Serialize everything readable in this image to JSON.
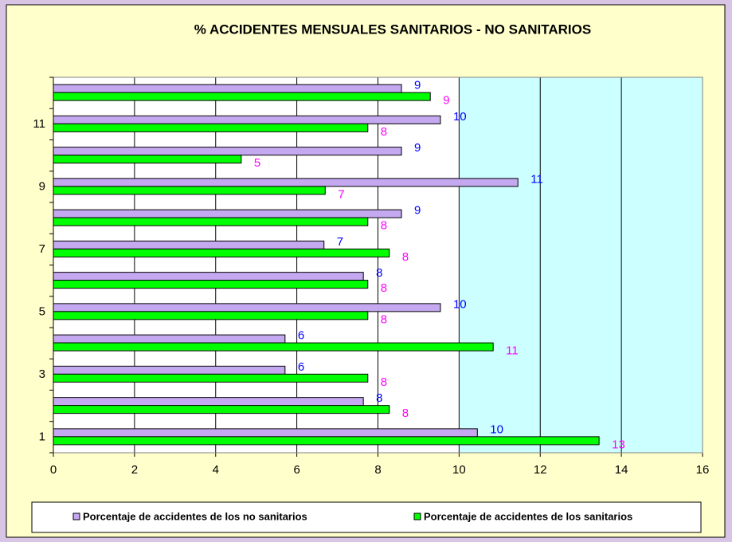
{
  "chart_data": {
    "type": "bar",
    "orientation": "horizontal",
    "title": "% ACCIDENTES MENSUALES SANITARIOS - NO SANITARIOS",
    "categories": [
      "1",
      null,
      "3",
      null,
      "5",
      null,
      "7",
      null,
      "9",
      null,
      "11",
      null
    ],
    "series": [
      {
        "name": "Porcentaje de accidentes de los no sanitarios",
        "color": "#c4a8f0",
        "label_color": "#0000ff",
        "values": [
          10.45,
          7.64,
          5.71,
          5.71,
          9.54,
          7.64,
          6.67,
          8.58,
          11.45,
          8.58,
          9.54,
          8.58
        ],
        "value_labels": [
          "10",
          "8",
          "6",
          "6",
          "10",
          "8",
          "7",
          "9",
          "11",
          "9",
          "10",
          "9"
        ]
      },
      {
        "name": "Porcentaje de accidentes de los sanitarios",
        "color": "#00ff00",
        "label_color": "#ff00ff",
        "values": [
          13.45,
          8.28,
          7.75,
          10.84,
          7.75,
          7.75,
          8.28,
          7.75,
          6.7,
          4.63,
          7.75,
          9.29
        ],
        "value_labels": [
          "13",
          "8",
          "8",
          "11",
          "8",
          "8",
          "8",
          "8",
          "7",
          "5",
          "8",
          "9"
        ]
      }
    ],
    "xlim": [
      0,
      16
    ],
    "xticks": [
      0,
      2,
      4,
      6,
      8,
      10,
      12,
      14,
      16
    ],
    "grid": true,
    "legend": "bottom"
  }
}
